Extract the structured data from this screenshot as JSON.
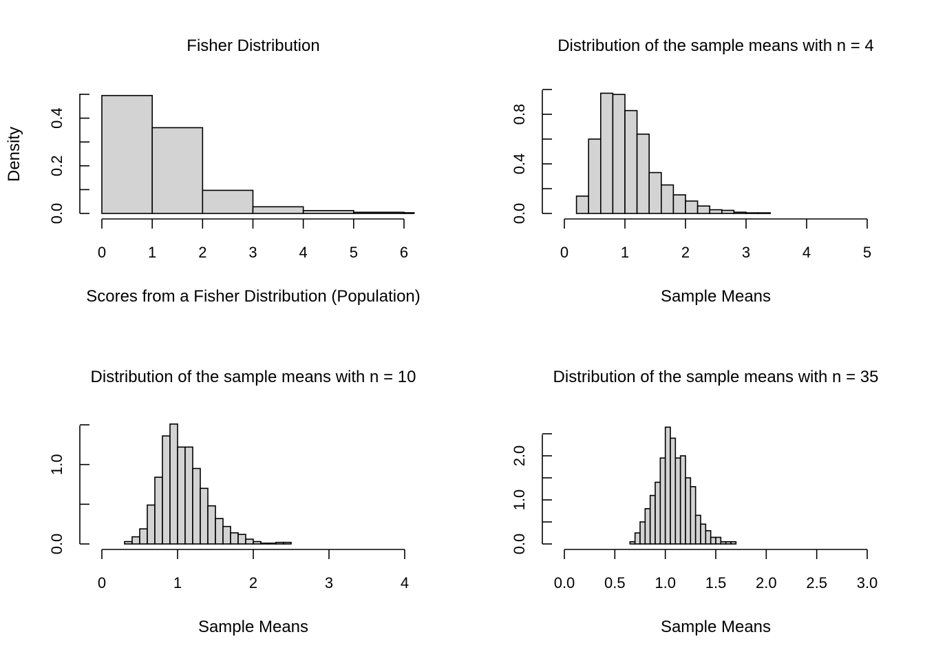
{
  "colors": {
    "bar_fill": "#d3d3d3",
    "bar_stroke": "#000000",
    "axis": "#000000",
    "background": "#ffffff"
  },
  "chart_data": [
    {
      "type": "bar",
      "subtype": "histogram",
      "title": "Fisher Distribution",
      "xlabel": "Scores from a Fisher Distribution (Population)",
      "ylabel": "Density",
      "xlim": [
        0,
        6.2
      ],
      "ylim": [
        0,
        0.5
      ],
      "x_ticks": [
        "0",
        "1",
        "2",
        "3",
        "4",
        "5",
        "6"
      ],
      "y_ticks": [
        "0.0",
        "0.2",
        "0.4"
      ],
      "bins": [
        [
          0,
          1
        ],
        [
          1,
          2
        ],
        [
          2,
          3
        ],
        [
          3,
          4
        ],
        [
          4,
          5
        ],
        [
          5,
          6
        ],
        [
          6,
          6.2
        ]
      ],
      "values": [
        0.495,
        0.36,
        0.097,
        0.028,
        0.012,
        0.005,
        0.003
      ]
    },
    {
      "type": "bar",
      "subtype": "histogram",
      "title": "Distribution of the sample means with n = 4",
      "xlabel": "Sample Means",
      "ylabel": "",
      "xlim": [
        0,
        5
      ],
      "ylim": [
        0,
        1.0
      ],
      "x_ticks": [
        "0",
        "1",
        "2",
        "3",
        "4",
        "5"
      ],
      "y_ticks": [
        "0.0",
        "0.4",
        "0.8"
      ],
      "bins": [
        [
          0.2,
          0.4
        ],
        [
          0.4,
          0.6
        ],
        [
          0.6,
          0.8
        ],
        [
          0.8,
          1.0
        ],
        [
          1.0,
          1.2
        ],
        [
          1.2,
          1.4
        ],
        [
          1.4,
          1.6
        ],
        [
          1.6,
          1.8
        ],
        [
          1.8,
          2.0
        ],
        [
          2.0,
          2.2
        ],
        [
          2.2,
          2.4
        ],
        [
          2.4,
          2.6
        ],
        [
          2.6,
          2.8
        ],
        [
          2.8,
          3.0
        ],
        [
          3.0,
          3.2
        ],
        [
          3.2,
          3.4
        ]
      ],
      "values": [
        0.14,
        0.6,
        0.97,
        0.96,
        0.83,
        0.64,
        0.33,
        0.23,
        0.15,
        0.1,
        0.06,
        0.03,
        0.025,
        0.01,
        0.005,
        0.005
      ]
    },
    {
      "type": "bar",
      "subtype": "histogram",
      "title": "Distribution of the sample means with n = 10",
      "xlabel": "Sample Means",
      "ylabel": "",
      "xlim": [
        0,
        4
      ],
      "ylim": [
        0,
        1.5
      ],
      "x_ticks": [
        "0",
        "1",
        "2",
        "3",
        "4"
      ],
      "y_ticks": [
        "0.0",
        "1.0"
      ],
      "bins": [
        [
          0.3,
          0.4
        ],
        [
          0.4,
          0.5
        ],
        [
          0.5,
          0.6
        ],
        [
          0.6,
          0.7
        ],
        [
          0.7,
          0.8
        ],
        [
          0.8,
          0.9
        ],
        [
          0.9,
          1.0
        ],
        [
          1.0,
          1.1
        ],
        [
          1.1,
          1.2
        ],
        [
          1.2,
          1.3
        ],
        [
          1.3,
          1.4
        ],
        [
          1.4,
          1.5
        ],
        [
          1.5,
          1.6
        ],
        [
          1.6,
          1.7
        ],
        [
          1.7,
          1.8
        ],
        [
          1.8,
          1.9
        ],
        [
          1.9,
          2.0
        ],
        [
          2.0,
          2.1
        ],
        [
          2.1,
          2.2
        ],
        [
          2.2,
          2.3
        ],
        [
          2.3,
          2.4
        ],
        [
          2.4,
          2.5
        ]
      ],
      "values": [
        0.03,
        0.09,
        0.19,
        0.49,
        0.84,
        1.36,
        1.51,
        1.22,
        1.22,
        0.95,
        0.7,
        0.48,
        0.32,
        0.22,
        0.14,
        0.12,
        0.06,
        0.03,
        0.01,
        0.01,
        0.02,
        0.02
      ]
    },
    {
      "type": "bar",
      "subtype": "histogram",
      "title": "Distribution of the sample means with n = 35",
      "xlabel": "Sample Means",
      "ylabel": "",
      "xlim": [
        0,
        3
      ],
      "ylim": [
        0,
        2.5
      ],
      "x_ticks": [
        "0.0",
        "0.5",
        "1.0",
        "1.5",
        "2.0",
        "2.5",
        "3.0"
      ],
      "y_ticks": [
        "0.0",
        "1.0",
        "2.0"
      ],
      "bins": [
        [
          0.65,
          0.7
        ],
        [
          0.7,
          0.75
        ],
        [
          0.75,
          0.8
        ],
        [
          0.8,
          0.85
        ],
        [
          0.85,
          0.9
        ],
        [
          0.9,
          0.95
        ],
        [
          0.95,
          1.0
        ],
        [
          1.0,
          1.05
        ],
        [
          1.05,
          1.1
        ],
        [
          1.1,
          1.15
        ],
        [
          1.15,
          1.2
        ],
        [
          1.2,
          1.25
        ],
        [
          1.25,
          1.3
        ],
        [
          1.3,
          1.35
        ],
        [
          1.35,
          1.4
        ],
        [
          1.4,
          1.45
        ],
        [
          1.45,
          1.5
        ],
        [
          1.5,
          1.55
        ],
        [
          1.55,
          1.6
        ],
        [
          1.6,
          1.65
        ],
        [
          1.65,
          1.7
        ]
      ],
      "values": [
        0.05,
        0.25,
        0.5,
        0.8,
        1.1,
        1.4,
        1.95,
        2.65,
        2.4,
        1.95,
        2.0,
        1.5,
        1.3,
        0.65,
        0.45,
        0.3,
        0.15,
        0.15,
        0.05,
        0.05,
        0.05
      ]
    }
  ]
}
